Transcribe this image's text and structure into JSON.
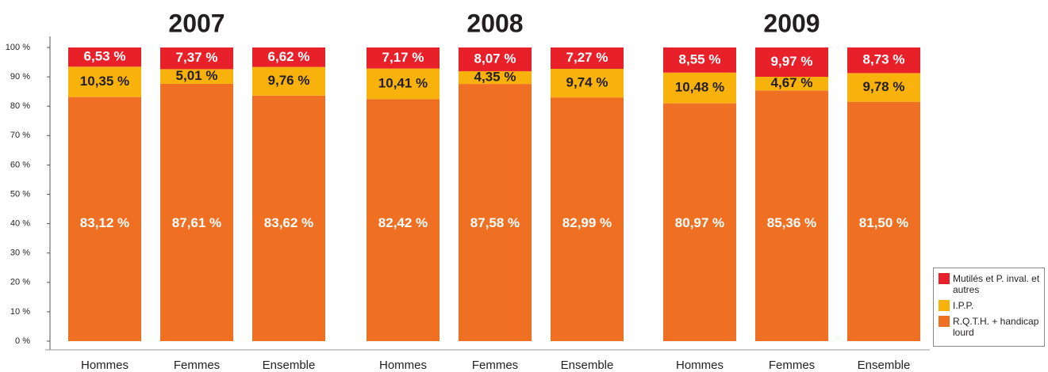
{
  "chart_data": {
    "type": "stacked_bar",
    "groups": [
      "2007",
      "2008",
      "2009"
    ],
    "categories": [
      "Hommes",
      "Femmes",
      "Ensemble",
      "Hommes",
      "Femmes",
      "Ensemble",
      "Hommes",
      "Femmes",
      "Ensemble"
    ],
    "series": [
      {
        "name": "R.Q.T.H. + handicap lourd",
        "color": "#f07023",
        "label_color": "#ffffff",
        "values": [
          83.12,
          87.61,
          83.62,
          82.42,
          87.58,
          82.99,
          80.97,
          85.36,
          81.5
        ],
        "value_labels": [
          "83,12 %",
          "87,61 %",
          "83,62 %",
          "82,42 %",
          "87,58 %",
          "82,99 %",
          "80,97 %",
          "85,36 %",
          "81,50 %"
        ]
      },
      {
        "name": "I.P.P.",
        "color": "#f9b10c",
        "label_color": "#231f20",
        "values": [
          10.35,
          5.01,
          9.76,
          10.41,
          4.35,
          9.74,
          10.48,
          4.67,
          9.78
        ],
        "value_labels": [
          "10,35 %",
          "5,01 %",
          "9,76 %",
          "10,41 %",
          "4,35 %",
          "9,74 %",
          "10,48 %",
          "4,67 %",
          "9,78 %"
        ]
      },
      {
        "name": "Mutilés et P. inval. et autres",
        "color": "#e8202a",
        "label_color": "#ffffff",
        "values": [
          6.53,
          7.37,
          6.62,
          7.17,
          8.07,
          7.27,
          8.55,
          9.97,
          8.73
        ],
        "value_labels": [
          "6,53 %",
          "7,37 %",
          "6,62 %",
          "7,17 %",
          "8,07 %",
          "7,27 %",
          "8,55 %",
          "9,97 %",
          "8,73 %"
        ]
      }
    ],
    "ylim": [
      0,
      100
    ],
    "yticks": [
      {
        "value": 0,
        "label": "0 %"
      },
      {
        "value": 10,
        "label": "10 %"
      },
      {
        "value": 20,
        "label": "20 %"
      },
      {
        "value": 30,
        "label": "30 %"
      },
      {
        "value": 40,
        "label": "40 %"
      },
      {
        "value": 50,
        "label": "50 %"
      },
      {
        "value": 60,
        "label": "60 %"
      },
      {
        "value": 70,
        "label": "70 %"
      },
      {
        "value": 80,
        "label": "80 %"
      },
      {
        "value": 90,
        "label": "90 %"
      },
      {
        "value": 100,
        "label": "100 %"
      }
    ],
    "legend": "bottom-right"
  }
}
